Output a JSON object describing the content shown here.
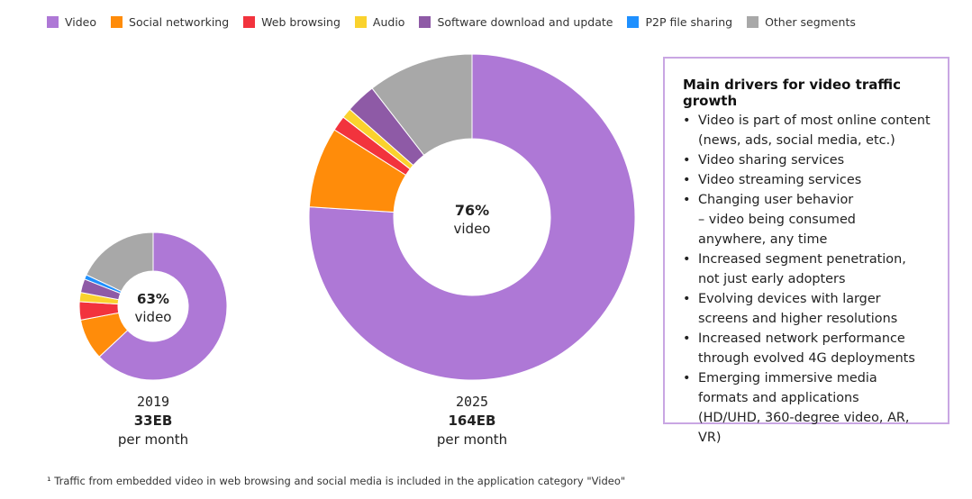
{
  "legend": [
    {
      "label": "Video",
      "color": "#ae78d6"
    },
    {
      "label": "Social networking",
      "color": "#ff8c0a"
    },
    {
      "label": "Web browsing",
      "color": "#f2333d"
    },
    {
      "label": "Audio",
      "color": "#fad22d"
    },
    {
      "label": "Software download and update",
      "color": "#8e5aa6"
    },
    {
      "label": "P2P file sharing",
      "color": "#1e90ff"
    },
    {
      "label": "Other segments",
      "color": "#a8a8a8"
    }
  ],
  "chart_data": [
    {
      "type": "pie",
      "hole": true,
      "year": "2019",
      "total": "33EB",
      "unit": "per month",
      "center_value": "63%",
      "center_label": "video",
      "slices": [
        {
          "label": "Video",
          "value": 63
        },
        {
          "label": "Social networking",
          "value": 9
        },
        {
          "label": "Web browsing",
          "value": 4
        },
        {
          "label": "Audio",
          "value": 2
        },
        {
          "label": "Software download and update",
          "value": 3
        },
        {
          "label": "P2P file sharing",
          "value": 1
        },
        {
          "label": "Other segments",
          "value": 18
        }
      ]
    },
    {
      "type": "pie",
      "hole": true,
      "year": "2025",
      "total": "164EB",
      "unit": "per month",
      "center_value": "76%",
      "center_label": "video",
      "slices": [
        {
          "label": "Video",
          "value": 76
        },
        {
          "label": "Social networking",
          "value": 8
        },
        {
          "label": "Web browsing",
          "value": 1.5
        },
        {
          "label": "Audio",
          "value": 1
        },
        {
          "label": "Software download and update",
          "value": 3
        },
        {
          "label": "P2P file sharing",
          "value": 0
        },
        {
          "label": "Other segments",
          "value": 10.5
        }
      ]
    }
  ],
  "drivers": {
    "title": "Main drivers for video traffic growth",
    "bullet": "•",
    "items": [
      [
        "Video is part of most online content",
        "(news, ads, social media, etc.)"
      ],
      [
        "Video sharing services"
      ],
      [
        "Video streaming services"
      ],
      [
        "Changing user behavior",
        "– video being consumed",
        "anywhere, any time"
      ],
      [
        "Increased segment penetration,",
        "not just early adopters"
      ],
      [
        "Evolving devices with larger",
        "screens and higher resolutions"
      ],
      [
        "Increased network performance",
        "through evolved 4G deployments"
      ],
      [
        "Emerging immersive media",
        "formats and applications",
        "(HD/UHD, 360-degree video, AR, VR)"
      ]
    ]
  },
  "footnote": "¹ Traffic from embedded video in web browsing and social media is included in the application category \"Video\""
}
